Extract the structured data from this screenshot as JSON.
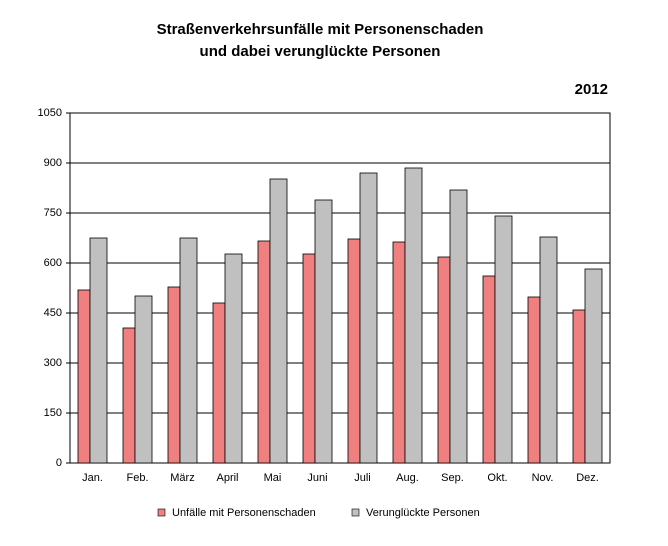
{
  "chart_data": {
    "type": "bar",
    "title": [
      "Straßenverkehrsunfälle mit Personenschaden",
      "und dabei verunglückte Personen"
    ],
    "annotation": "2012",
    "categories": [
      "Jan.",
      "Feb.",
      "März",
      "April",
      "Mai",
      "Juni",
      "Juli",
      "Aug.",
      "Sep.",
      "Okt.",
      "Nov.",
      "Dez."
    ],
    "series": [
      {
        "name": "Unfälle mit Personenschaden",
        "color": "#f08080",
        "values": [
          519,
          405,
          528,
          480,
          666,
          627,
          672,
          663,
          618,
          561,
          498,
          459
        ]
      },
      {
        "name": "Verunglückte Personen",
        "color": "#c0c0c0",
        "values": [
          675,
          501,
          675,
          627,
          852,
          789,
          870,
          885,
          819,
          741,
          678,
          582
        ]
      }
    ],
    "ylim": [
      0,
      1050
    ],
    "yticks": [
      0,
      150,
      300,
      450,
      600,
      750,
      900,
      1050
    ],
    "grid": true
  }
}
